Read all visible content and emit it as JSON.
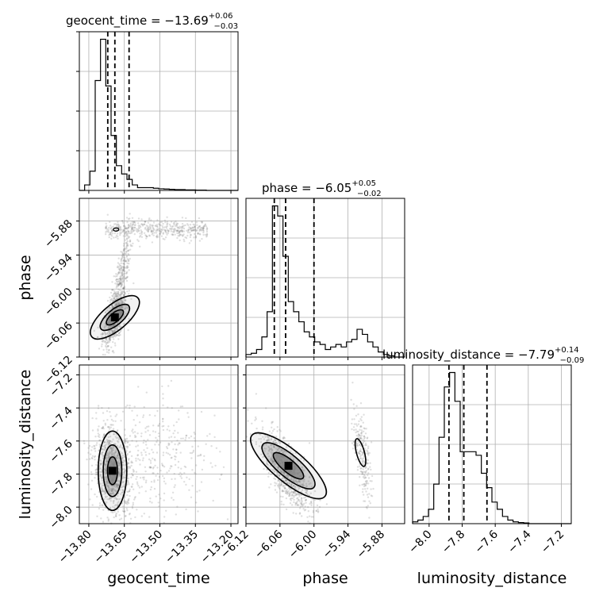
{
  "chart_data": {
    "type": "corner",
    "grid": true,
    "colors": {
      "hist": "#000000",
      "scatter": "#808080",
      "contour": "#000000",
      "grid": "#b0b0b0"
    },
    "parameters": [
      "geocent_time",
      "phase",
      "luminosity_distance"
    ],
    "axis_labels": [
      "geocent_time",
      "phase",
      "luminosity_distance"
    ],
    "titles": [
      {
        "name": "geocent_time",
        "text": "geocent_time = −13.69",
        "sup": "+0.06",
        "sub": "−0.03"
      },
      {
        "name": "phase",
        "text": "phase = −6.05",
        "sup": "+0.05",
        "sub": "−0.02"
      },
      {
        "name": "luminosity_distance",
        "text": "luminosity_distance = −7.79",
        "sup": "+0.14",
        "sub": "−0.09"
      }
    ],
    "ranges": [
      [
        -13.84,
        -13.17
      ],
      [
        -6.12,
        -5.84
      ],
      [
        -8.1,
        -7.14
      ]
    ],
    "ticks": [
      {
        "values": [
          -13.8,
          -13.65,
          -13.5,
          -13.35,
          -13.2
        ],
        "labels": [
          "−13.80",
          "−13.65",
          "−13.50",
          "−13.35",
          "−13.20"
        ]
      },
      {
        "values": [
          -6.12,
          -6.06,
          -6.0,
          -5.94,
          -5.88
        ],
        "labels": [
          "−6.12",
          "−6.06",
          "−6.00",
          "−5.94",
          "−5.88"
        ]
      },
      {
        "values": [
          -8.0,
          -7.8,
          -7.6,
          -7.4,
          -7.2
        ],
        "labels": [
          "−8.0",
          "−7.8",
          "−7.6",
          "−7.4",
          "−7.2"
        ]
      }
    ],
    "quantile_lines": [
      [
        -13.72,
        -13.69,
        -13.63
      ],
      [
        -6.07,
        -6.05,
        -6.0
      ],
      [
        -7.88,
        -7.79,
        -7.65
      ]
    ],
    "histograms": [
      {
        "parameter": "geocent_time",
        "edges_range": [
          -13.84,
          -13.17
        ],
        "bins": 30,
        "counts": [
          0,
          2,
          7,
          40,
          55,
          38,
          20,
          9,
          6,
          4,
          2,
          1,
          1,
          1,
          0.8,
          0.6,
          0.5,
          0.4,
          0.3,
          0.3,
          0.2,
          0.2,
          0.1,
          0.1,
          0,
          0,
          0,
          0,
          0,
          0
        ]
      },
      {
        "parameter": "phase",
        "edges_range": [
          -6.12,
          -5.84
        ],
        "bins": 30,
        "counts": [
          1,
          1.5,
          3,
          8,
          18,
          60,
          56,
          40,
          22,
          18,
          14,
          10,
          8,
          6,
          5,
          3,
          4,
          5,
          4,
          6,
          7,
          11,
          9,
          6,
          4,
          2,
          1,
          0.5,
          0,
          0
        ]
      },
      {
        "parameter": "luminosity_distance",
        "edges_range": [
          -8.1,
          -7.14
        ],
        "bins": 30,
        "counts": [
          0.5,
          1,
          2,
          4,
          11,
          24,
          38,
          42,
          34,
          20,
          20,
          20,
          19,
          14,
          10,
          6,
          4,
          2,
          1,
          0.5,
          0.3,
          0.2,
          0,
          0,
          0,
          0,
          0,
          0,
          0,
          0
        ]
      }
    ],
    "scatter_pairs": [
      {
        "x": "geocent_time",
        "y": "phase",
        "density_peak": [
          -13.69,
          -6.05
        ],
        "secondary_band": {
          "x_range": [
            -13.73,
            -13.3
          ],
          "y": -5.895
        }
      },
      {
        "x": "geocent_time",
        "y": "luminosity_distance",
        "density_peak": [
          -13.7,
          -7.79
        ]
      },
      {
        "x": "phase",
        "y": "luminosity_distance",
        "density_peak": [
          -6.05,
          -7.78
        ],
        "secondary_cluster": [
          -5.915,
          -7.68
        ]
      }
    ],
    "contour_levels": [
      "0.5",
      "1.0",
      "1.5",
      "2.0"
    ]
  }
}
